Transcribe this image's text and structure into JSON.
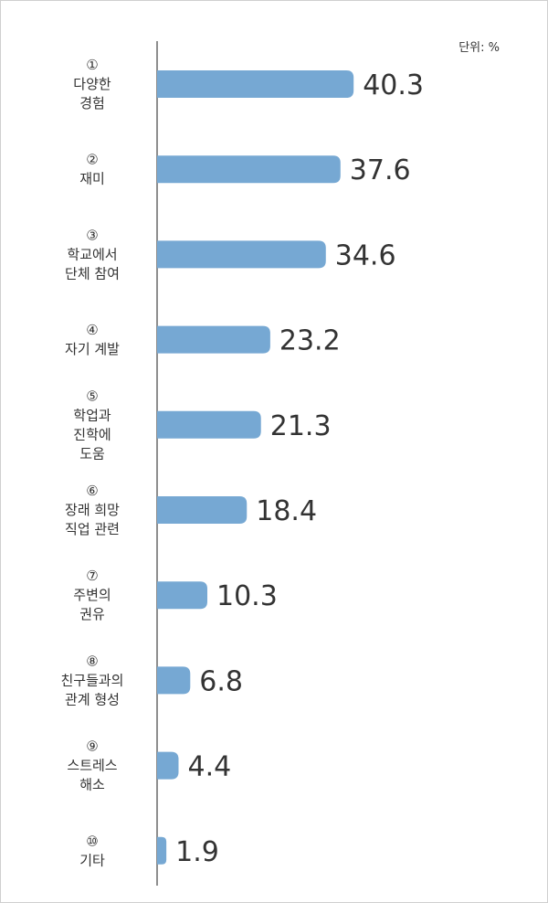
{
  "unit_label": "단위: %",
  "chart_data": {
    "type": "bar",
    "orientation": "horizontal",
    "categories": [
      {
        "number": "①",
        "lines": [
          "다양한",
          "경험"
        ]
      },
      {
        "number": "②",
        "lines": [
          "재미"
        ]
      },
      {
        "number": "③",
        "lines": [
          "학교에서",
          "단체 참여"
        ]
      },
      {
        "number": "④",
        "lines": [
          "자기 계발"
        ]
      },
      {
        "number": "⑤",
        "lines": [
          "학업과",
          "진학에",
          "도움"
        ]
      },
      {
        "number": "⑥",
        "lines": [
          "장래 희망",
          "직업 관련"
        ]
      },
      {
        "number": "⑦",
        "lines": [
          "주변의",
          "권유"
        ]
      },
      {
        "number": "⑧",
        "lines": [
          "친구들과의",
          "관계 형성"
        ]
      },
      {
        "number": "⑨",
        "lines": [
          "스트레스",
          "해소"
        ]
      },
      {
        "number": "⑩",
        "lines": [
          "기타"
        ]
      }
    ],
    "values": [
      40.3,
      37.6,
      34.6,
      23.2,
      21.3,
      18.4,
      10.3,
      6.8,
      4.4,
      1.9
    ],
    "value_labels": [
      "40.3",
      "37.6",
      "34.6",
      "23.2",
      "21.3",
      "18.4",
      "10.3",
      "6.8",
      "4.4",
      "1.9"
    ],
    "bar_color": "#76a8d3",
    "axis_color": "#444444",
    "grid": false,
    "legend": "none"
  }
}
